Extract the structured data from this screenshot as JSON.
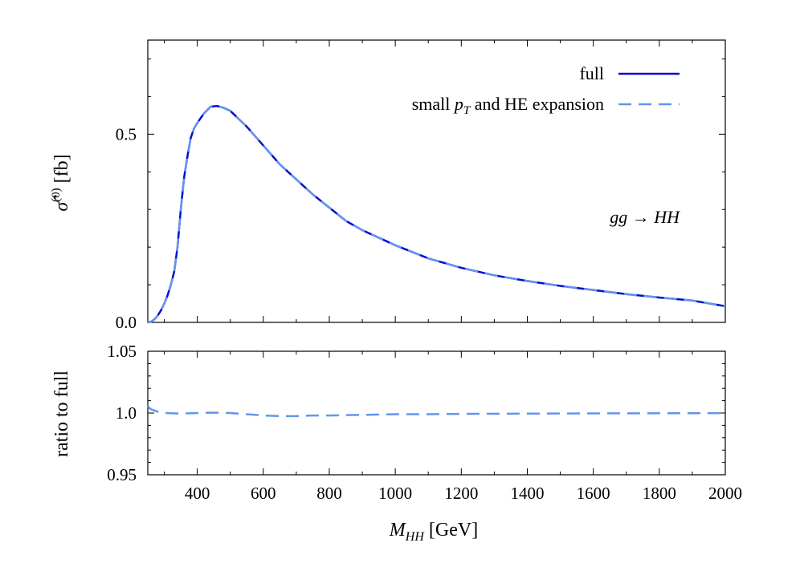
{
  "chart_data": [
    {
      "type": "line",
      "title": "",
      "xlabel": "M_HH [GeV]",
      "ylabel": "σ̂^(0) [fb]",
      "xlim": [
        250,
        2000
      ],
      "ylim": [
        0,
        0.75
      ],
      "yticks": [
        "0.0",
        "0.5"
      ],
      "annotation": "gg → HH",
      "legend_position": "top-right",
      "series": [
        {
          "name": "full",
          "color": "#0a0ad2",
          "style": "solid",
          "x": [
            250,
            260,
            270,
            280,
            290,
            300,
            310,
            320,
            330,
            340,
            350,
            360,
            370,
            380,
            390,
            400,
            420,
            440,
            460,
            480,
            500,
            550,
            600,
            650,
            700,
            750,
            800,
            850,
            900,
            1000,
            1100,
            1200,
            1300,
            1400,
            1500,
            1600,
            1700,
            1800,
            1900,
            2000
          ],
          "values": [
            0.0,
            0.002,
            0.008,
            0.018,
            0.032,
            0.05,
            0.072,
            0.1,
            0.135,
            0.2,
            0.3,
            0.385,
            0.44,
            0.49,
            0.515,
            0.53,
            0.555,
            0.573,
            0.575,
            0.57,
            0.562,
            0.52,
            0.47,
            0.42,
            0.38,
            0.34,
            0.305,
            0.27,
            0.245,
            0.205,
            0.17,
            0.145,
            0.125,
            0.11,
            0.097,
            0.086,
            0.075,
            0.066,
            0.058,
            0.043
          ]
        },
        {
          "name": "small p_T and HE expansion",
          "color": "#6495ed",
          "style": "dashed",
          "x": [
            250,
            260,
            270,
            280,
            290,
            300,
            310,
            320,
            330,
            340,
            350,
            360,
            370,
            380,
            390,
            400,
            420,
            440,
            460,
            480,
            500,
            550,
            600,
            650,
            700,
            750,
            800,
            850,
            900,
            1000,
            1100,
            1200,
            1300,
            1400,
            1500,
            1600,
            1700,
            1800,
            1900,
            2000
          ],
          "values": [
            0.0,
            0.002,
            0.008,
            0.018,
            0.032,
            0.05,
            0.072,
            0.1,
            0.135,
            0.2,
            0.3,
            0.385,
            0.44,
            0.49,
            0.515,
            0.53,
            0.555,
            0.573,
            0.575,
            0.57,
            0.562,
            0.52,
            0.47,
            0.42,
            0.38,
            0.34,
            0.305,
            0.27,
            0.245,
            0.205,
            0.17,
            0.145,
            0.125,
            0.11,
            0.097,
            0.086,
            0.075,
            0.066,
            0.058,
            0.043
          ]
        }
      ]
    },
    {
      "type": "line",
      "title": "",
      "xlabel": "M_HH [GeV]",
      "ylabel": "ratio to full",
      "xlim": [
        250,
        2000
      ],
      "ylim": [
        0.95,
        1.05
      ],
      "yticks": [
        "0.95",
        "1.0",
        "1.05"
      ],
      "xticks": [
        "400",
        "600",
        "800",
        "1000",
        "1200",
        "1400",
        "1600",
        "1800",
        "2000"
      ],
      "series": [
        {
          "name": "small p_T and HE expansion",
          "color": "#6495ed",
          "style": "dashed",
          "x": [
            250,
            255,
            260,
            270,
            280,
            300,
            350,
            400,
            450,
            500,
            550,
            600,
            650,
            700,
            750,
            800,
            900,
            1000,
            1100,
            1200,
            1400,
            1600,
            1800,
            2000
          ],
          "values": [
            1.006,
            1.004,
            1.003,
            1.002,
            1.001,
            1.0,
            0.9995,
            1.0,
            1.0003,
            1.0,
            0.999,
            0.998,
            0.9975,
            0.9975,
            0.998,
            0.998,
            0.9985,
            0.999,
            0.999,
            0.9993,
            0.9995,
            0.9997,
            0.9998,
            0.9999
          ]
        }
      ]
    }
  ],
  "legend": {
    "full": "full",
    "expansion_prefix": "small ",
    "expansion_pT_main": "p",
    "expansion_pT_sub": "T",
    "expansion_suffix": " and HE expansion"
  },
  "labels": {
    "ylabel_top_sigma": "σ̂",
    "ylabel_top_sup": "(0)",
    "ylabel_top_unit": " [fb]",
    "ylabel_bottom": "ratio to full",
    "xlabel_main": "M",
    "xlabel_sub": "HH",
    "xlabel_unit": " [GeV]",
    "annotation": "gg → HH"
  }
}
